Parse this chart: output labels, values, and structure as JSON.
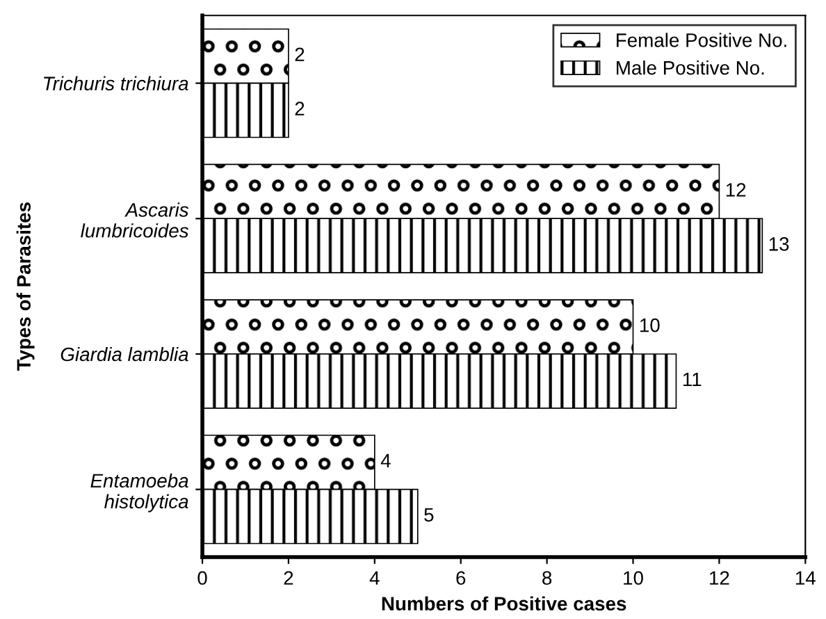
{
  "chart_data": {
    "type": "bar",
    "orientation": "horizontal",
    "xlabel": "Numbers of Positive cases",
    "ylabel": "Types of Parasites",
    "categories": [
      "Trichuris trichiura",
      "Ascaris\nlumbricoides",
      "Giardia lamblia",
      "Entamoeba\nhistolytica"
    ],
    "series": [
      {
        "name": "Female Positive No.",
        "color": "#000000",
        "values": [
          2,
          12,
          10,
          4
        ]
      },
      {
        "name": "Male Positive No.",
        "color": "#000000",
        "values": [
          2,
          13,
          11,
          5
        ]
      }
    ],
    "xlim": [
      0,
      14
    ],
    "xticks": [
      0,
      2,
      4,
      6,
      8,
      10,
      12,
      14
    ],
    "data_labels": true,
    "legend": "top right",
    "grid": false
  }
}
